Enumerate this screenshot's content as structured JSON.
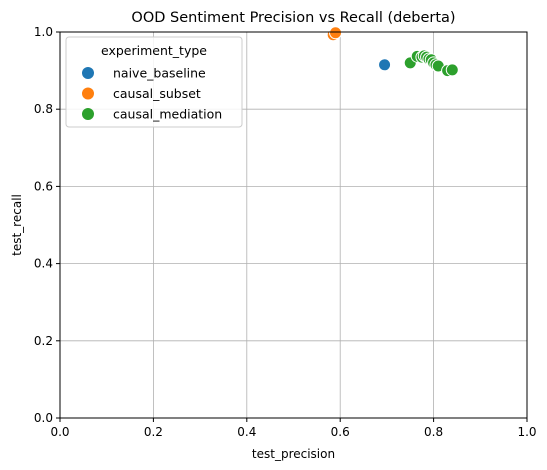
{
  "chart_data": {
    "type": "scatter",
    "title": "OOD Sentiment Precision vs Recall (deberta)",
    "xlabel": "test_precision",
    "ylabel": "test_recall",
    "xlim": [
      0.0,
      1.0
    ],
    "ylim": [
      0.0,
      1.0
    ],
    "xticks": [
      "0.0",
      "0.2",
      "0.4",
      "0.6",
      "0.8",
      "1.0"
    ],
    "yticks": [
      "0.0",
      "0.2",
      "0.4",
      "0.6",
      "0.8",
      "1.0"
    ],
    "grid": true,
    "legend": {
      "title": "experiment_type",
      "position": "top-left"
    },
    "series": [
      {
        "name": "naive_baseline",
        "color": "#1f77b4",
        "points": [
          [
            0.695,
            0.915
          ]
        ]
      },
      {
        "name": "causal_subset",
        "color": "#ff7f0e",
        "points": [
          [
            0.585,
            0.993
          ],
          [
            0.59,
            0.998
          ]
        ]
      },
      {
        "name": "causal_mediation",
        "color": "#2ca02c",
        "points": [
          [
            0.75,
            0.92
          ],
          [
            0.765,
            0.937
          ],
          [
            0.775,
            0.935
          ],
          [
            0.78,
            0.938
          ],
          [
            0.785,
            0.935
          ],
          [
            0.79,
            0.93
          ],
          [
            0.795,
            0.928
          ],
          [
            0.8,
            0.92
          ],
          [
            0.805,
            0.915
          ],
          [
            0.81,
            0.912
          ],
          [
            0.83,
            0.9
          ],
          [
            0.84,
            0.902
          ]
        ]
      }
    ]
  }
}
